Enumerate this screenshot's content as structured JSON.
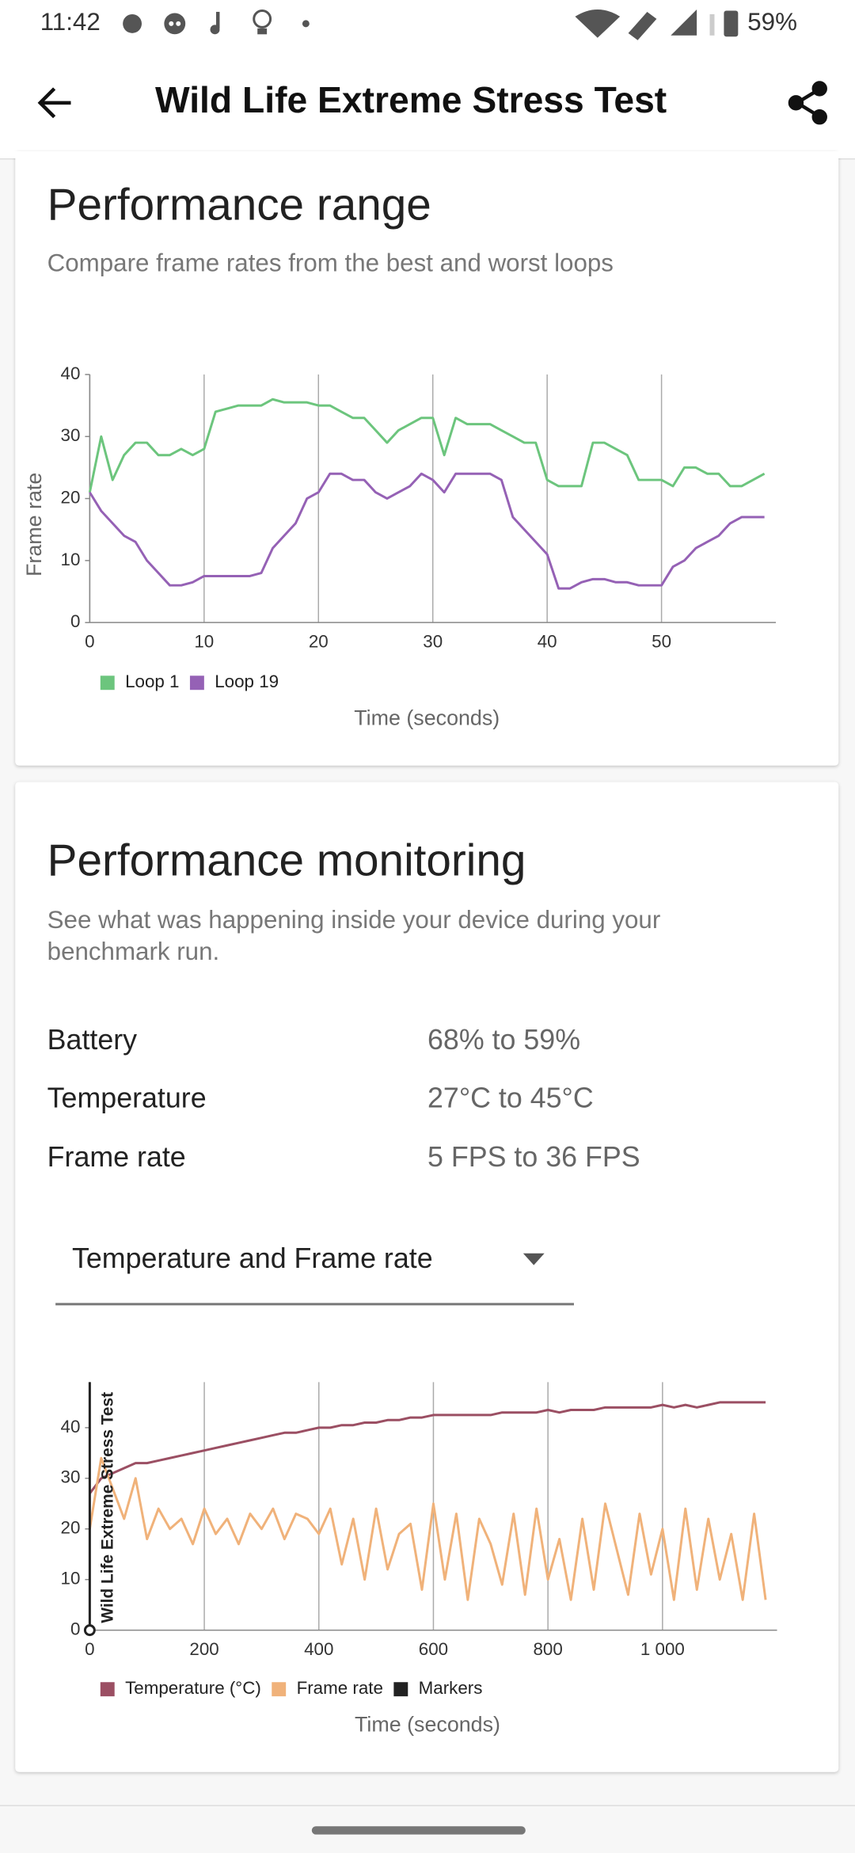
{
  "status_bar": {
    "time": "11:42",
    "battery": "59%"
  },
  "header": {
    "title": "Wild Life Extreme Stress Test"
  },
  "performance_range": {
    "title": "Performance range",
    "subtitle": "Compare frame rates from the best and worst loops"
  },
  "performance_monitoring": {
    "title": "Performance monitoring",
    "subtitle": [
      "See what was happening inside your device during your",
      "benchmark run."
    ],
    "stats": [
      {
        "label": "Battery",
        "value": "68% to 59%"
      },
      {
        "label": "Temperature",
        "value": "27°C to 45°C"
      },
      {
        "label": "Frame rate",
        "value": "5 FPS to 36 FPS"
      }
    ],
    "dropdown": "Temperature and Frame rate"
  },
  "chart_data": [
    {
      "type": "line",
      "x_label": "Time (seconds)",
      "y_label": "Frame rate",
      "x": [
        0,
        1,
        2,
        3,
        4,
        5,
        6,
        7,
        8,
        9,
        10,
        11,
        12,
        13,
        14,
        15,
        16,
        17,
        18,
        19,
        20,
        21,
        22,
        23,
        24,
        25,
        26,
        27,
        28,
        29,
        30,
        31,
        32,
        33,
        34,
        35,
        36,
        37,
        38,
        39,
        40,
        41,
        42,
        43,
        44,
        45,
        46,
        47,
        48,
        49,
        50,
        51,
        52,
        53,
        54,
        55,
        56,
        57,
        58,
        59
      ],
      "series": [
        {
          "name": "Loop 1",
          "color": "#6cc57d",
          "values": [
            21,
            30,
            23,
            27,
            29,
            29,
            27,
            27,
            28,
            27,
            28,
            34,
            34.5,
            35,
            35,
            35,
            36,
            35.5,
            35.5,
            35.5,
            35,
            35,
            34,
            33,
            33,
            31,
            29,
            31,
            32,
            33,
            33,
            27,
            33,
            32,
            32,
            32,
            31,
            30,
            29,
            29,
            23,
            22,
            22,
            22,
            29,
            29,
            28,
            27,
            23,
            23,
            23,
            22,
            25,
            25,
            24,
            24,
            22,
            22,
            23,
            24
          ]
        },
        {
          "name": "Loop 19",
          "color": "#9561b5",
          "values": [
            21,
            18,
            16,
            14,
            13,
            10,
            8,
            6,
            6,
            6.5,
            7.5,
            7.5,
            7.5,
            7.5,
            7.5,
            8,
            12,
            14,
            16,
            20,
            21,
            24,
            24,
            23,
            23,
            21,
            20,
            21,
            22,
            24,
            23,
            21,
            24,
            24,
            24,
            24,
            23,
            17,
            15,
            13,
            11,
            5.5,
            5.5,
            6.5,
            7,
            7,
            6.5,
            6.5,
            6,
            6,
            6,
            9,
            10,
            12,
            13,
            14,
            16,
            17,
            17,
            17
          ]
        }
      ],
      "xlim": [
        0,
        60
      ],
      "xticks": [
        0,
        10,
        20,
        30,
        40,
        50
      ],
      "ylim": [
        0,
        40
      ],
      "yticks": [
        0,
        10,
        20,
        30,
        40
      ],
      "grid": true,
      "legend": "bottom-left"
    },
    {
      "type": "line",
      "x_label": "Time (seconds)",
      "x": [
        0,
        20,
        40,
        60,
        80,
        100,
        120,
        140,
        160,
        180,
        200,
        220,
        240,
        260,
        280,
        300,
        320,
        340,
        360,
        380,
        400,
        420,
        440,
        460,
        480,
        500,
        520,
        540,
        560,
        580,
        600,
        620,
        640,
        660,
        680,
        700,
        720,
        740,
        760,
        780,
        800,
        820,
        840,
        860,
        880,
        900,
        920,
        940,
        960,
        980,
        1000,
        1020,
        1040,
        1060,
        1080,
        1100,
        1120,
        1140,
        1160,
        1180
      ],
      "series": [
        {
          "name": "Temperature (°C)",
          "color": "#9b4f63",
          "values": [
            27,
            30,
            31,
            32,
            33,
            33,
            33.5,
            34,
            34.5,
            35,
            35.5,
            36,
            36.5,
            37,
            37.5,
            38,
            38.5,
            39,
            39,
            39.5,
            40,
            40,
            40.5,
            40.5,
            41,
            41,
            41.5,
            41.5,
            42,
            42,
            42.5,
            42.5,
            42.5,
            42.5,
            42.5,
            42.5,
            43,
            43,
            43,
            43,
            43.5,
            43,
            43.5,
            43.5,
            43.5,
            44,
            44,
            44,
            44,
            44,
            44.5,
            44,
            44.5,
            44,
            44.5,
            45,
            45,
            45,
            45,
            45
          ]
        },
        {
          "name": "Frame rate",
          "color": "#f0b27a",
          "values": [
            20,
            34,
            28,
            22,
            30,
            18,
            24,
            20,
            22,
            17,
            24,
            19,
            22,
            17,
            23,
            20,
            24,
            18,
            23,
            22,
            19,
            24,
            13,
            22,
            10,
            24,
            12,
            19,
            21,
            8,
            25,
            10,
            23,
            6,
            22,
            17,
            9,
            23,
            7,
            24,
            10,
            18,
            6,
            22,
            8,
            25,
            16,
            7,
            23,
            11,
            20,
            6,
            24,
            8,
            22,
            10,
            19,
            6,
            23,
            6
          ]
        }
      ],
      "markers": {
        "name": "Markers",
        "color": "#222222",
        "x": [
          0
        ],
        "labels": [
          "Wild Life Extreme Stress Test"
        ]
      },
      "xlim": [
        0,
        1200
      ],
      "xticks": [
        0,
        200,
        400,
        600,
        800,
        {
          "value": 1000,
          "label": "1 000"
        }
      ],
      "ylim": [
        0,
        49
      ],
      "yticks": [
        0,
        10,
        20,
        30,
        40
      ],
      "grid": true,
      "legend": "bottom-left"
    }
  ]
}
